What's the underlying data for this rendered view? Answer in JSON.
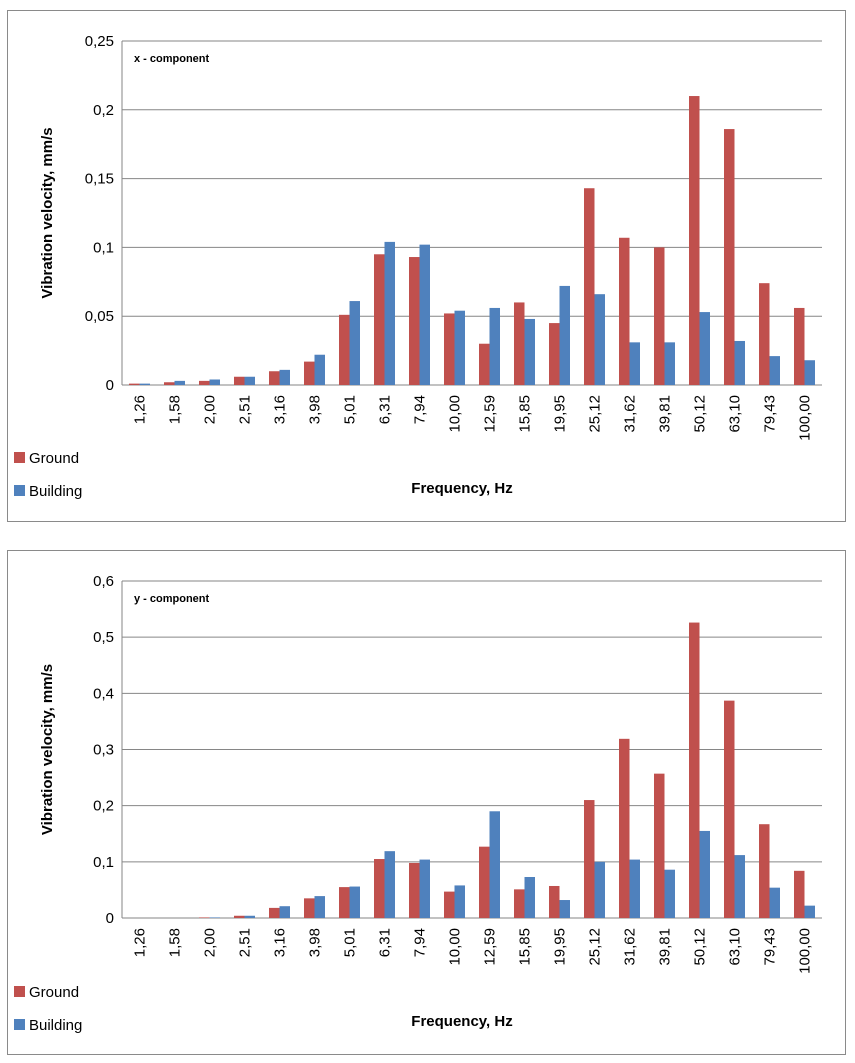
{
  "chart_data": [
    {
      "type": "bar",
      "annotation": "x - component",
      "xlabel": "Frequency, Hz",
      "ylabel": "Vibration velocity, mm/s",
      "ylim": [
        0,
        0.25
      ],
      "yticks": [
        0,
        0.05,
        0.1,
        0.15,
        0.2,
        0.25
      ],
      "ytick_labels": [
        "0",
        "0,05",
        "0,1",
        "0,15",
        "0,2",
        "0,25"
      ],
      "grid": true,
      "legend_position": "bottom-left",
      "categories": [
        "1,26",
        "1,58",
        "2,00",
        "2,51",
        "3,16",
        "3,98",
        "5,01",
        "6,31",
        "7,94",
        "10,00",
        "12,59",
        "15,85",
        "19,95",
        "25,12",
        "31,62",
        "39,81",
        "50,12",
        "63,10",
        "79,43",
        "100,00"
      ],
      "series": [
        {
          "name": "Ground",
          "color": "#C0504D",
          "values": [
            0.001,
            0.002,
            0.003,
            0.006,
            0.01,
            0.017,
            0.051,
            0.095,
            0.093,
            0.052,
            0.03,
            0.06,
            0.045,
            0.143,
            0.107,
            0.1,
            0.21,
            0.186,
            0.074,
            0.056
          ]
        },
        {
          "name": "Building",
          "color": "#4F81BD",
          "values": [
            0.001,
            0.003,
            0.004,
            0.006,
            0.011,
            0.022,
            0.061,
            0.104,
            0.102,
            0.054,
            0.056,
            0.048,
            0.072,
            0.066,
            0.031,
            0.031,
            0.053,
            0.032,
            0.021,
            0.018
          ]
        }
      ]
    },
    {
      "type": "bar",
      "annotation": "y - component",
      "xlabel": "Frequency, Hz",
      "ylabel": "Vibration velocity, mm/s",
      "ylim": [
        0,
        0.6
      ],
      "yticks": [
        0,
        0.1,
        0.2,
        0.3,
        0.4,
        0.5,
        0.6
      ],
      "ytick_labels": [
        "0",
        "0,1",
        "0,2",
        "0,3",
        "0,4",
        "0,5",
        "0,6"
      ],
      "grid": true,
      "legend_position": "bottom-left",
      "categories": [
        "1,26",
        "1,58",
        "2,00",
        "2,51",
        "3,16",
        "3,98",
        "5,01",
        "6,31",
        "7,94",
        "10,00",
        "12,59",
        "15,85",
        "19,95",
        "25,12",
        "31,62",
        "39,81",
        "50,12",
        "63,10",
        "79,43",
        "100,00"
      ],
      "series": [
        {
          "name": "Ground",
          "color": "#C0504D",
          "values": [
            0.0,
            0.0,
            0.001,
            0.004,
            0.018,
            0.035,
            0.055,
            0.105,
            0.098,
            0.047,
            0.127,
            0.051,
            0.057,
            0.21,
            0.319,
            0.257,
            0.526,
            0.387,
            0.167,
            0.084
          ]
        },
        {
          "name": "Building",
          "color": "#4F81BD",
          "values": [
            0.0,
            0.0,
            0.001,
            0.004,
            0.021,
            0.039,
            0.056,
            0.119,
            0.104,
            0.058,
            0.19,
            0.073,
            0.032,
            0.1,
            0.104,
            0.086,
            0.155,
            0.112,
            0.054,
            0.022
          ]
        }
      ]
    }
  ]
}
